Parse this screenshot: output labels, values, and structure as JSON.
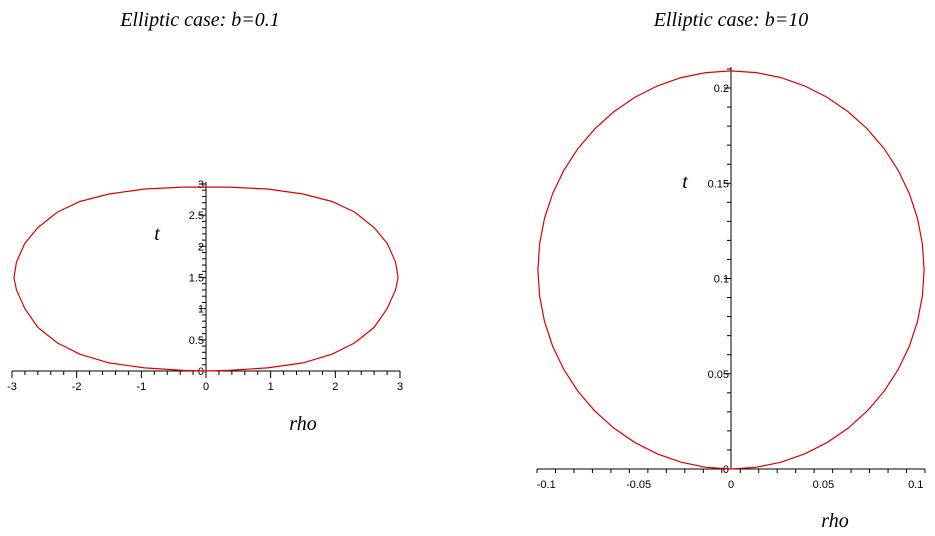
{
  "chart_data": [
    {
      "type": "line",
      "title": "Elliptic case: b=0.1",
      "xlabel": "rho",
      "ylabel": "t",
      "xlim": [
        -3,
        3
      ],
      "ylim": [
        0,
        3
      ],
      "x_ticks": [
        -3,
        -2,
        -1,
        0,
        1,
        2,
        3
      ],
      "x_tick_labels": [
        "-3",
        "-2",
        "-1",
        "0",
        "1",
        "2",
        "3"
      ],
      "y_ticks": [
        0,
        0.5,
        1,
        1.5,
        2,
        2.5,
        3
      ],
      "y_tick_labels": [
        "0",
        "0.5",
        "1",
        "1.5",
        "2",
        "2.5",
        "3"
      ],
      "grid": false,
      "series": [
        {
          "color": "#e00000",
          "points": [
            [
              0,
              0
            ],
            [
              0.35,
              0.01
            ],
            [
              0.95,
              0.05
            ],
            [
              1.5,
              0.13
            ],
            [
              1.95,
              0.27
            ],
            [
              2.3,
              0.45
            ],
            [
              2.6,
              0.7
            ],
            [
              2.8,
              1.0
            ],
            [
              2.93,
              1.3
            ],
            [
              2.97,
              1.5
            ],
            [
              2.93,
              1.75
            ],
            [
              2.8,
              2.05
            ],
            [
              2.6,
              2.3
            ],
            [
              2.3,
              2.55
            ],
            [
              1.95,
              2.72
            ],
            [
              1.5,
              2.84
            ],
            [
              0.95,
              2.92
            ],
            [
              0.35,
              2.95
            ],
            [
              0,
              2.95
            ],
            [
              -0.35,
              2.95
            ],
            [
              -0.95,
              2.92
            ],
            [
              -1.5,
              2.84
            ],
            [
              -1.95,
              2.72
            ],
            [
              -2.3,
              2.55
            ],
            [
              -2.6,
              2.3
            ],
            [
              -2.8,
              2.05
            ],
            [
              -2.93,
              1.75
            ],
            [
              -2.97,
              1.5
            ],
            [
              -2.93,
              1.3
            ],
            [
              -2.8,
              1.0
            ],
            [
              -2.6,
              0.7
            ],
            [
              -2.3,
              0.45
            ],
            [
              -1.95,
              0.27
            ],
            [
              -1.5,
              0.13
            ],
            [
              -0.95,
              0.05
            ],
            [
              -0.35,
              0.01
            ],
            [
              0,
              0
            ]
          ]
        }
      ]
    },
    {
      "type": "line",
      "title": "Elliptic case: b=10",
      "xlabel": "rho",
      "ylabel": "t",
      "xlim": [
        -0.105,
        0.105
      ],
      "ylim": [
        0,
        0.21
      ],
      "x_ticks": [
        -0.1,
        -0.05,
        0,
        0.05,
        0.1
      ],
      "x_tick_labels": [
        "-0.1",
        "-0.05",
        "0",
        "0.05",
        "0.1"
      ],
      "y_ticks": [
        0,
        0.05,
        0.1,
        0.15,
        0.2
      ],
      "y_tick_labels": [
        "0",
        "0.05",
        "0.1",
        "0.15",
        "0.2"
      ],
      "grid": false,
      "series": [
        {
          "color": "#e00000",
          "center": [
            0,
            0.1045
          ],
          "radius_x": 0.1045,
          "radius_y": 0.1045
        }
      ]
    }
  ]
}
